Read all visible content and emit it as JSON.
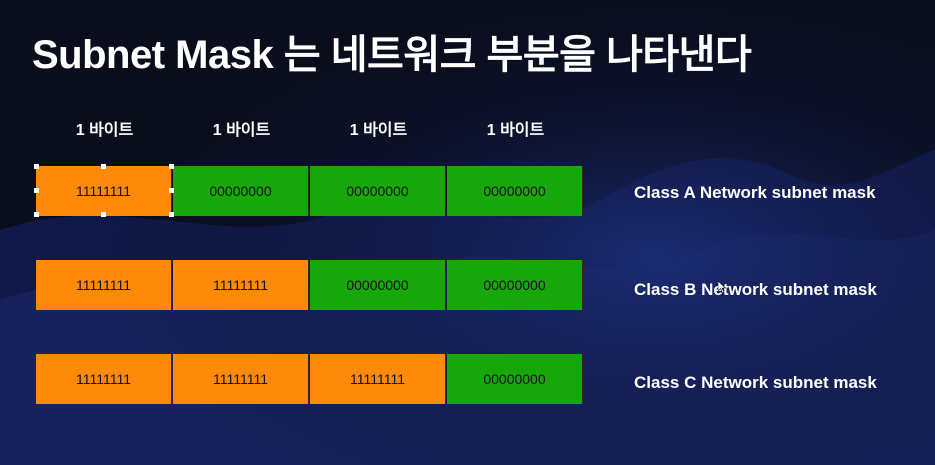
{
  "slide": {
    "title": "Subnet Mask 는 네트워크 부분을 나타낸다",
    "byte_labels": [
      "1 바이트",
      "1 바이트",
      "1 바이트",
      "1 바이트"
    ],
    "rows": [
      {
        "label": "Class A Network subnet mask",
        "cells": [
          "11111111",
          "00000000",
          "00000000",
          "00000000"
        ]
      },
      {
        "label": "Class B Network subnet mask",
        "cells": [
          "11111111",
          "11111111",
          "00000000",
          "00000000"
        ]
      },
      {
        "label": "Class C Network subnet mask",
        "cells": [
          "11111111",
          "11111111",
          "11111111",
          "00000000"
        ]
      }
    ]
  },
  "colors": {
    "ones_fill": "#ff8a0a",
    "zeros_fill": "#17a70a",
    "background": "#0a0d1c"
  }
}
